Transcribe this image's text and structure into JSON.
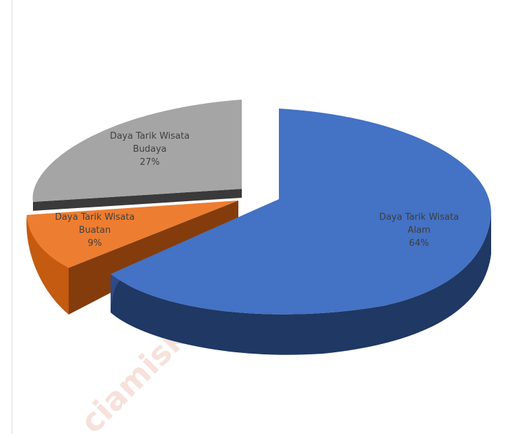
{
  "chart_data": {
    "type": "pie",
    "style": "3d-exploded",
    "slices": [
      {
        "name": "Daya Tarik Wisata Alam",
        "value": 64,
        "label_lines": [
          "Daya Tarik Wisata",
          "Alam",
          "64%"
        ],
        "color": "#4472c4",
        "side_color": "#1f3864"
      },
      {
        "name": "Daya Tarik Wisata Buatan",
        "value": 9,
        "label_lines": [
          "Daya Tarik Wisata",
          "Buatan",
          "9%"
        ],
        "color": "#ed7d31",
        "side_color": "#843c0c"
      },
      {
        "name": "Daya Tarik Wisata Budaya",
        "value": 27,
        "label_lines": [
          "Daya Tarik Wisata",
          "Budaya",
          "27%"
        ],
        "color": "#a5a5a5",
        "side_color": "#3a3a3a"
      }
    ]
  },
  "watermark": "ciamiskab.bps.go.id"
}
